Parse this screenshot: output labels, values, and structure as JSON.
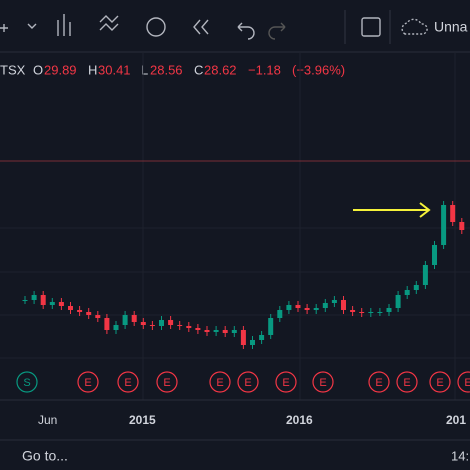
{
  "toolbar": {
    "layout_name": "Unna"
  },
  "legend": {
    "symbol": "TSX",
    "open_label": "O",
    "open": "29.89",
    "high_label": "H",
    "high": "30.41",
    "low_label": "L",
    "low": "28.56",
    "close_label": "C",
    "close": "28.62",
    "change": "−1.18",
    "change_pct": "(−3.96%)"
  },
  "price_chart": {
    "closes": [
      16.02,
      16.92,
      15.12,
      15.66,
      14.94,
      14.22,
      13.86,
      13.32,
      12.78,
      10.62,
      11.52,
      13.32,
      12.06,
      11.52,
      11.34,
      12.42,
      11.52,
      11.34,
      10.98,
      10.62,
      10.26,
      10.62,
      10.08,
      10.62,
      7.92,
      8.82,
      9.72,
      12.78,
      14.22,
      15.12,
      14.58,
      14.22,
      14.58,
      15.48,
      16.02,
      14.22,
      13.86,
      13.68,
      13.86,
      13.86,
      14.58,
      16.92,
      17.82,
      18.72,
      22.32,
      25.92,
      33.12,
      30.06,
      28.62
    ]
  },
  "time_axis": {
    "labels": [
      "Jun",
      "2015",
      "2016",
      "201"
    ]
  },
  "events": [
    "S",
    "E",
    "E",
    "E",
    "E",
    "E",
    "E",
    "E",
    "E",
    "E",
    "E",
    "E"
  ],
  "footer": {
    "goto": "Go to...",
    "time": "14:"
  }
}
